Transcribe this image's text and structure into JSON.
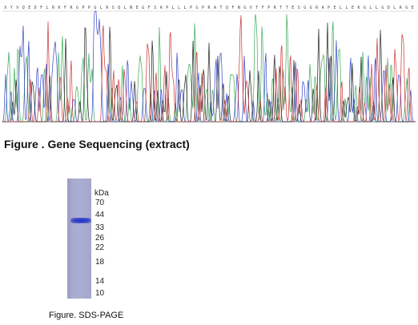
{
  "sequencing": {
    "title": "Figure . Gene Sequencing (extract)",
    "residues": "XYVQEDFLRKFRGPPGLRSQLNEGFSAPLLLPGPRATQFNGVTFPRTTESGGRAPELLEKGLLGDLRGE",
    "trace_colors": {
      "A": "#3aaa55",
      "C": "#3344cc",
      "G": "#222222",
      "T": "#cc3333"
    }
  },
  "gel": {
    "unit_label": "kDa",
    "markers": [
      {
        "label": "70",
        "kda": 70
      },
      {
        "label": "44",
        "kda": 44
      },
      {
        "label": "33",
        "kda": 33
      },
      {
        "label": "26",
        "kda": 26
      },
      {
        "label": "22",
        "kda": 22
      },
      {
        "label": "18",
        "kda": 18
      },
      {
        "label": "14",
        "kda": 14
      },
      {
        "label": "10",
        "kda": 10
      }
    ],
    "caption": "Figure. SDS-PAGE"
  }
}
